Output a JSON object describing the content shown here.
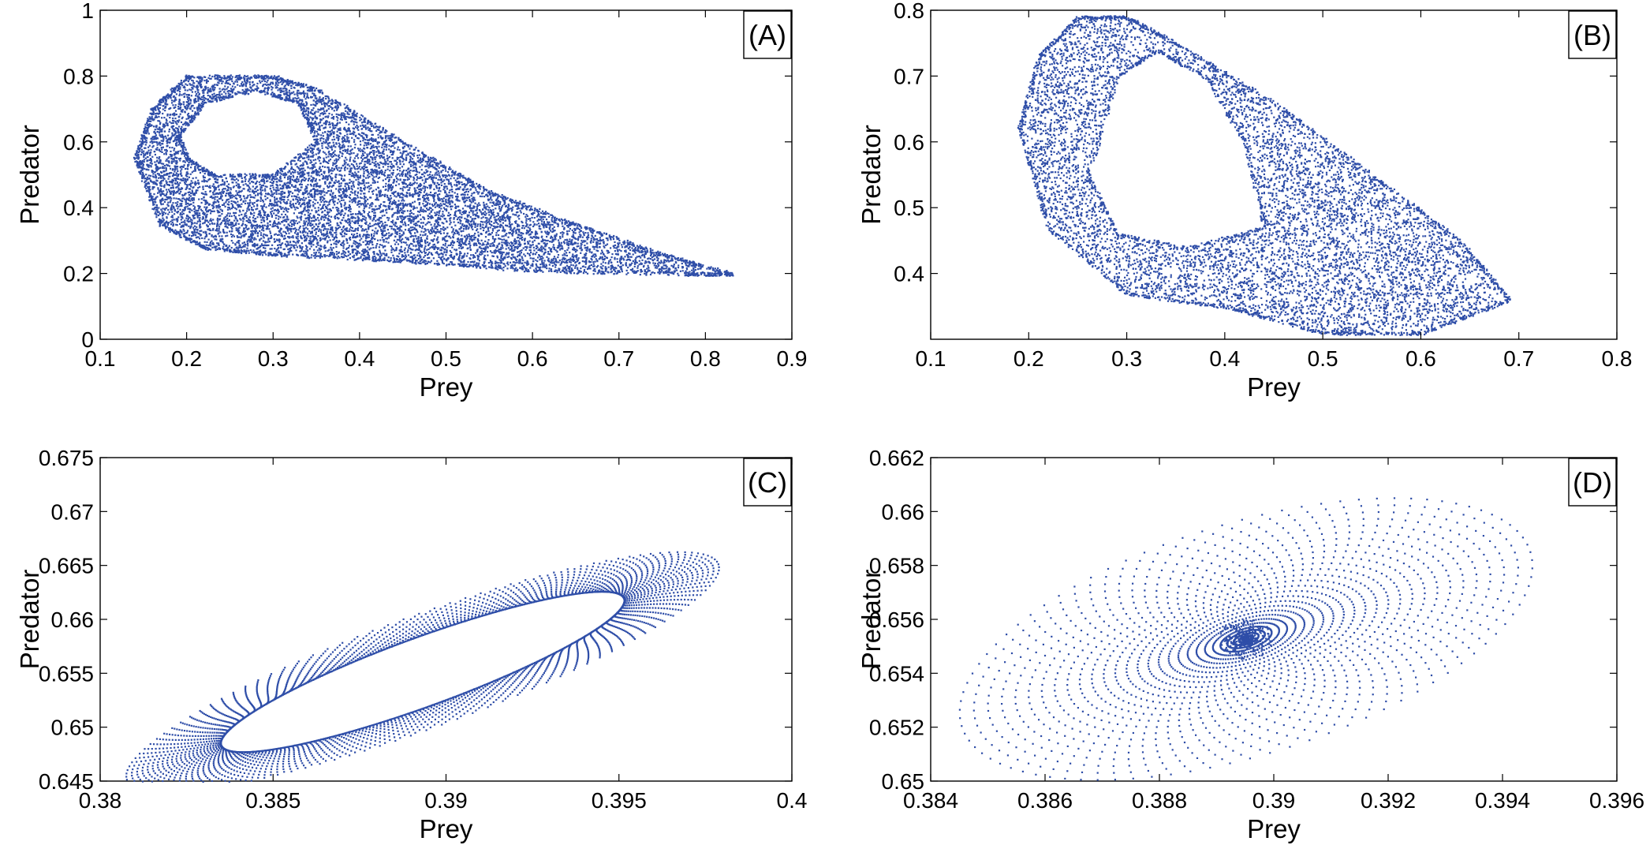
{
  "chart_data": [
    {
      "type": "scatter",
      "panel_label": "(A)",
      "xlabel": "Prey",
      "ylabel": "Predator",
      "xlim": [
        0.1,
        0.9
      ],
      "ylim": [
        0,
        1
      ],
      "xticks": [
        "0.1",
        "0.2",
        "0.3",
        "0.4",
        "0.5",
        "0.6",
        "0.7",
        "0.8",
        "0.9"
      ],
      "yticks": [
        "0",
        "0.2",
        "0.4",
        "0.6",
        "0.8",
        "1"
      ],
      "point_color": "#2f4ea8",
      "attractor": {
        "kind": "chaotic",
        "outer_boundary": [
          [
            0.14,
            0.55
          ],
          [
            0.16,
            0.7
          ],
          [
            0.2,
            0.8
          ],
          [
            0.3,
            0.8
          ],
          [
            0.35,
            0.76
          ],
          [
            0.45,
            0.6
          ],
          [
            0.55,
            0.45
          ],
          [
            0.65,
            0.35
          ],
          [
            0.75,
            0.26
          ],
          [
            0.83,
            0.2
          ],
          [
            0.78,
            0.2
          ],
          [
            0.6,
            0.21
          ],
          [
            0.45,
            0.24
          ],
          [
            0.3,
            0.26
          ],
          [
            0.22,
            0.28
          ],
          [
            0.17,
            0.35
          ]
        ],
        "inner_hole": [
          [
            0.19,
            0.62
          ],
          [
            0.22,
            0.72
          ],
          [
            0.28,
            0.76
          ],
          [
            0.33,
            0.72
          ],
          [
            0.35,
            0.6
          ],
          [
            0.3,
            0.5
          ],
          [
            0.23,
            0.5
          ],
          [
            0.2,
            0.55
          ]
        ],
        "n_points": 9000
      }
    },
    {
      "type": "scatter",
      "panel_label": "(B)",
      "xlabel": "Prey",
      "ylabel": "Predator",
      "xlim": [
        0.1,
        0.8
      ],
      "ylim": [
        0.3,
        0.8
      ],
      "xticks": [
        "0.1",
        "0.2",
        "0.3",
        "0.4",
        "0.5",
        "0.6",
        "0.7",
        "0.8"
      ],
      "yticks": [
        "0.4",
        "0.5",
        "0.6",
        "0.7",
        "0.8"
      ],
      "point_color": "#2f4ea8",
      "attractor": {
        "kind": "chaotic",
        "outer_boundary": [
          [
            0.19,
            0.62
          ],
          [
            0.21,
            0.73
          ],
          [
            0.25,
            0.79
          ],
          [
            0.3,
            0.79
          ],
          [
            0.35,
            0.75
          ],
          [
            0.45,
            0.66
          ],
          [
            0.55,
            0.55
          ],
          [
            0.64,
            0.45
          ],
          [
            0.69,
            0.36
          ],
          [
            0.6,
            0.31
          ],
          [
            0.5,
            0.31
          ],
          [
            0.4,
            0.35
          ],
          [
            0.3,
            0.37
          ],
          [
            0.22,
            0.47
          ]
        ],
        "inner_hole": [
          [
            0.26,
            0.55
          ],
          [
            0.29,
            0.7
          ],
          [
            0.33,
            0.74
          ],
          [
            0.38,
            0.7
          ],
          [
            0.42,
            0.6
          ],
          [
            0.44,
            0.47
          ],
          [
            0.36,
            0.44
          ],
          [
            0.29,
            0.46
          ]
        ],
        "n_points": 6500
      }
    },
    {
      "type": "scatter",
      "panel_label": "(C)",
      "xlabel": "Prey",
      "ylabel": "Predator",
      "xlim": [
        0.38,
        0.4
      ],
      "ylim": [
        0.645,
        0.675
      ],
      "xticks": [
        "0.38",
        "0.385",
        "0.39",
        "0.395",
        "0.4"
      ],
      "yticks": [
        "0.645",
        "0.65",
        "0.655",
        "0.66",
        "0.665",
        "0.67",
        "0.675"
      ],
      "point_color": "#2f4ea8",
      "spiral": {
        "kind": "converging to limit cycle",
        "center": [
          0.3893,
          0.6552
        ],
        "limit_cycle": {
          "semi_axis_prey": 0.0062,
          "semi_axis_predator": 0.0032
        },
        "outer_orbit": {
          "semi_axis_prey": 0.0091,
          "semi_axis_predator": 0.0052
        },
        "tilt_deg": 40,
        "spokes": 120,
        "rings": 24
      }
    },
    {
      "type": "scatter",
      "panel_label": "(D)",
      "xlabel": "Prey",
      "ylabel": "Predator",
      "xlim": [
        0.384,
        0.396
      ],
      "ylim": [
        0.65,
        0.662
      ],
      "xticks": [
        "0.384",
        "0.386",
        "0.388",
        "0.39",
        "0.392",
        "0.394",
        "0.396"
      ],
      "yticks": [
        "0.65",
        "0.652",
        "0.654",
        "0.656",
        "0.658",
        "0.66",
        "0.662"
      ],
      "point_color": "#2f4ea8",
      "spiral": {
        "kind": "converging to fixed point",
        "center": [
          0.3895,
          0.6553
        ],
        "outer_orbit": {
          "semi_axis_prey": 0.0052,
          "semi_axis_predator": 0.0043
        },
        "tilt_deg": 34,
        "spokes": 90,
        "rings": 28
      }
    }
  ]
}
